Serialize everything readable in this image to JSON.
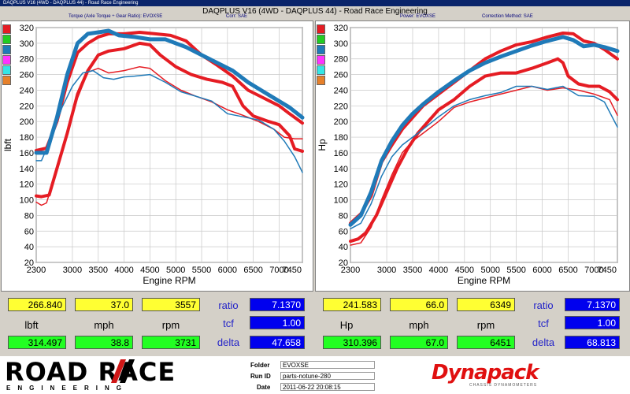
{
  "window_title": "DAQPLUS V16 (4WD - DAQPLUS 44) - Road Race Engineering",
  "main_title": "DAQPLUS V16 (4WD - DAQPLUS 44) - Road Race Engineering",
  "left_header": {
    "measure": "Torque (Axle Torque ÷ Gear Ratio): EVOXSE",
    "corr": "Corr: SAE"
  },
  "right_header": {
    "measure": "Power: EVOXSE",
    "corr": "Correction Method: SAE"
  },
  "legend_colors": [
    "#e51c23",
    "#22cc22",
    "#1f7ab8",
    "#ff33ff",
    "#33e6e6",
    "#e6802a"
  ],
  "chart_data": [
    {
      "type": "line",
      "xlabel": "Engine RPM",
      "ylabel": "lbft",
      "xlim": [
        2300,
        7450
      ],
      "ylim": [
        20,
        320
      ],
      "x_ticks": [
        2300,
        3000,
        3500,
        4000,
        4500,
        5000,
        5500,
        6000,
        6500,
        7000,
        7450
      ],
      "y_ticks": [
        20,
        40,
        60,
        80,
        100,
        120,
        140,
        160,
        180,
        200,
        220,
        240,
        260,
        280,
        300,
        320
      ],
      "series": [
        {
          "color": "#e51c23",
          "width": 4,
          "points": [
            [
              2300,
              163
            ],
            [
              2500,
              166
            ],
            [
              2700,
              200
            ],
            [
              2900,
              250
            ],
            [
              3100,
              288
            ],
            [
              3300,
              300
            ],
            [
              3500,
              308
            ],
            [
              3700,
              312
            ],
            [
              4000,
              312
            ],
            [
              4300,
              314
            ],
            [
              4600,
              312
            ],
            [
              4900,
              310
            ],
            [
              5200,
              303
            ],
            [
              5500,
              285
            ],
            [
              5800,
              272
            ],
            [
              6100,
              258
            ],
            [
              6400,
              240
            ],
            [
              6700,
              230
            ],
            [
              7000,
              220
            ],
            [
              7200,
              210
            ],
            [
              7450,
              198
            ]
          ]
        },
        {
          "color": "#e51c23",
          "width": 4,
          "points": [
            [
              2300,
              105
            ],
            [
              2400,
              104
            ],
            [
              2550,
              106
            ],
            [
              2700,
              140
            ],
            [
              2900,
              185
            ],
            [
              3100,
              235
            ],
            [
              3300,
              265
            ],
            [
              3500,
              285
            ],
            [
              3700,
              290
            ],
            [
              4000,
              293
            ],
            [
              4300,
              300
            ],
            [
              4500,
              298
            ],
            [
              4700,
              285
            ],
            [
              5000,
              270
            ],
            [
              5300,
              260
            ],
            [
              5600,
              254
            ],
            [
              5900,
              250
            ],
            [
              6100,
              245
            ],
            [
              6300,
              220
            ],
            [
              6500,
              207
            ],
            [
              6800,
              200
            ],
            [
              7000,
              196
            ],
            [
              7200,
              182
            ],
            [
              7300,
              165
            ],
            [
              7450,
              162
            ]
          ]
        },
        {
          "color": "#1f7ab8",
          "width": 5,
          "points": [
            [
              2300,
              160
            ],
            [
              2500,
              160
            ],
            [
              2700,
              205
            ],
            [
              2900,
              260
            ],
            [
              3100,
              300
            ],
            [
              3300,
              312
            ],
            [
              3500,
              314
            ],
            [
              3700,
              316
            ],
            [
              3900,
              310
            ],
            [
              4200,
              308
            ],
            [
              4500,
              305
            ],
            [
              4800,
              305
            ],
            [
              5000,
              300
            ],
            [
              5200,
              295
            ],
            [
              5500,
              285
            ],
            [
              5800,
              275
            ],
            [
              6100,
              265
            ],
            [
              6400,
              250
            ],
            [
              6700,
              238
            ],
            [
              7000,
              226
            ],
            [
              7200,
              218
            ],
            [
              7450,
              205
            ]
          ]
        },
        {
          "color": "#e51c23",
          "width": 1.5,
          "points": [
            [
              2300,
              97
            ],
            [
              2400,
              93
            ],
            [
              2500,
              96
            ],
            [
              2700,
              140
            ],
            [
              2900,
              185
            ],
            [
              3100,
              230
            ],
            [
              3300,
              263
            ],
            [
              3500,
              268
            ],
            [
              3700,
              262
            ],
            [
              4000,
              265
            ],
            [
              4300,
              270
            ],
            [
              4500,
              268
            ],
            [
              4800,
              252
            ],
            [
              5100,
              240
            ],
            [
              5400,
              232
            ],
            [
              5700,
              225
            ],
            [
              6000,
              215
            ],
            [
              6300,
              208
            ],
            [
              6600,
              200
            ],
            [
              6900,
              190
            ],
            [
              7100,
              180
            ],
            [
              7300,
              178
            ],
            [
              7450,
              178
            ]
          ]
        },
        {
          "color": "#1f7ab8",
          "width": 1.5,
          "points": [
            [
              2300,
              150
            ],
            [
              2400,
              150
            ],
            [
              2600,
              180
            ],
            [
              2800,
              218
            ],
            [
              3000,
              245
            ],
            [
              3200,
              262
            ],
            [
              3400,
              265
            ],
            [
              3600,
              256
            ],
            [
              3800,
              254
            ],
            [
              4000,
              257
            ],
            [
              4200,
              258
            ],
            [
              4500,
              260
            ],
            [
              4800,
              250
            ],
            [
              5100,
              238
            ],
            [
              5400,
              232
            ],
            [
              5700,
              226
            ],
            [
              6000,
              210
            ],
            [
              6300,
              206
            ],
            [
              6600,
              202
            ],
            [
              6900,
              190
            ],
            [
              7100,
              175
            ],
            [
              7300,
              155
            ],
            [
              7450,
              135
            ]
          ]
        }
      ]
    },
    {
      "type": "line",
      "xlabel": "Engine RPM",
      "ylabel": "Hp",
      "xlim": [
        2300,
        7450
      ],
      "ylim": [
        20,
        320
      ],
      "x_ticks": [
        2300,
        3000,
        3500,
        4000,
        4500,
        5000,
        5500,
        6000,
        6500,
        7000,
        7450
      ],
      "y_ticks": [
        20,
        40,
        60,
        80,
        100,
        120,
        140,
        160,
        180,
        200,
        220,
        240,
        260,
        280,
        300,
        320
      ],
      "series": [
        {
          "color": "#e51c23",
          "width": 4,
          "points": [
            [
              2300,
              70
            ],
            [
              2500,
              82
            ],
            [
              2700,
              105
            ],
            [
              2900,
              148
            ],
            [
              3100,
              170
            ],
            [
              3300,
              190
            ],
            [
              3500,
              205
            ],
            [
              3700,
              220
            ],
            [
              4000,
              235
            ],
            [
              4300,
              250
            ],
            [
              4600,
              265
            ],
            [
              4900,
              280
            ],
            [
              5200,
              290
            ],
            [
              5500,
              298
            ],
            [
              5800,
              302
            ],
            [
              6100,
              308
            ],
            [
              6400,
              313
            ],
            [
              6600,
              312
            ],
            [
              6800,
              303
            ],
            [
              7000,
              300
            ],
            [
              7200,
              292
            ],
            [
              7450,
              280
            ]
          ]
        },
        {
          "color": "#e51c23",
          "width": 4,
          "points": [
            [
              2300,
              47
            ],
            [
              2450,
              50
            ],
            [
              2600,
              58
            ],
            [
              2800,
              80
            ],
            [
              3000,
              110
            ],
            [
              3200,
              140
            ],
            [
              3400,
              165
            ],
            [
              3600,
              185
            ],
            [
              3800,
              200
            ],
            [
              4000,
              215
            ],
            [
              4300,
              228
            ],
            [
              4600,
              245
            ],
            [
              4900,
              258
            ],
            [
              5200,
              262
            ],
            [
              5500,
              262
            ],
            [
              5800,
              268
            ],
            [
              6100,
              275
            ],
            [
              6300,
              280
            ],
            [
              6400,
              275
            ],
            [
              6500,
              258
            ],
            [
              6700,
              248
            ],
            [
              6900,
              245
            ],
            [
              7100,
              245
            ],
            [
              7300,
              238
            ],
            [
              7450,
              228
            ]
          ]
        },
        {
          "color": "#1f7ab8",
          "width": 5,
          "points": [
            [
              2300,
              68
            ],
            [
              2500,
              80
            ],
            [
              2700,
              110
            ],
            [
              2900,
              150
            ],
            [
              3100,
              175
            ],
            [
              3300,
              195
            ],
            [
              3500,
              210
            ],
            [
              3700,
              222
            ],
            [
              4000,
              238
            ],
            [
              4300,
              252
            ],
            [
              4600,
              265
            ],
            [
              4900,
              275
            ],
            [
              5200,
              283
            ],
            [
              5500,
              290
            ],
            [
              5800,
              297
            ],
            [
              6100,
              303
            ],
            [
              6400,
              308
            ],
            [
              6600,
              304
            ],
            [
              6800,
              296
            ],
            [
              7000,
              298
            ],
            [
              7200,
              295
            ],
            [
              7450,
              290
            ]
          ]
        },
        {
          "color": "#e51c23",
          "width": 1.5,
          "points": [
            [
              2300,
              42
            ],
            [
              2500,
              45
            ],
            [
              2700,
              65
            ],
            [
              2900,
              100
            ],
            [
              3100,
              132
            ],
            [
              3300,
              160
            ],
            [
              3500,
              175
            ],
            [
              3700,
              185
            ],
            [
              4000,
              200
            ],
            [
              4300,
              218
            ],
            [
              4600,
              225
            ],
            [
              4900,
              230
            ],
            [
              5200,
              235
            ],
            [
              5500,
              240
            ],
            [
              5800,
              245
            ],
            [
              6100,
              240
            ],
            [
              6400,
              243
            ],
            [
              6700,
              240
            ],
            [
              7000,
              235
            ],
            [
              7300,
              228
            ],
            [
              7450,
              208
            ]
          ]
        },
        {
          "color": "#1f7ab8",
          "width": 1.5,
          "points": [
            [
              2300,
              63
            ],
            [
              2500,
              70
            ],
            [
              2700,
              95
            ],
            [
              2900,
              130
            ],
            [
              3100,
              155
            ],
            [
              3300,
              170
            ],
            [
              3500,
              180
            ],
            [
              3700,
              190
            ],
            [
              4000,
              206
            ],
            [
              4300,
              220
            ],
            [
              4600,
              228
            ],
            [
              4900,
              233
            ],
            [
              5200,
              237
            ],
            [
              5500,
              245
            ],
            [
              5800,
              245
            ],
            [
              6100,
              241
            ],
            [
              6400,
              245
            ],
            [
              6700,
              233
            ],
            [
              7000,
              232
            ],
            [
              7200,
              225
            ],
            [
              7450,
              193
            ]
          ]
        }
      ]
    }
  ],
  "left_stats": {
    "row1": [
      "266.840",
      "37.0",
      "3557"
    ],
    "labels": [
      "lbft",
      "mph",
      "rpm"
    ],
    "row3": [
      "314.497",
      "38.8",
      "3731"
    ],
    "side_labels": [
      "ratio",
      "tcf",
      "delta"
    ],
    "side_values": [
      "7.1370",
      "1.00",
      "47.658"
    ]
  },
  "right_stats": {
    "row1": [
      "241.583",
      "66.0",
      "6349"
    ],
    "labels": [
      "Hp",
      "mph",
      "rpm"
    ],
    "row3": [
      "310.396",
      "67.0",
      "6451"
    ],
    "side_labels": [
      "ratio",
      "tcf",
      "delta"
    ],
    "side_values": [
      "7.1370",
      "1.00",
      "68.813"
    ]
  },
  "footer": {
    "logo_main": "ROAD  RACE",
    "logo_sub": "ENGINEERING",
    "folder_label": "Folder",
    "folder_value": "EVOXSE",
    "runid_label": "Run ID",
    "runid_value": "parts-notune-280",
    "date_label": "Date",
    "date_value": "2011-06-22 20:08:15",
    "brand": "Dynapack",
    "brand_sub": "CHASSIS DYNAMOMETERS"
  }
}
